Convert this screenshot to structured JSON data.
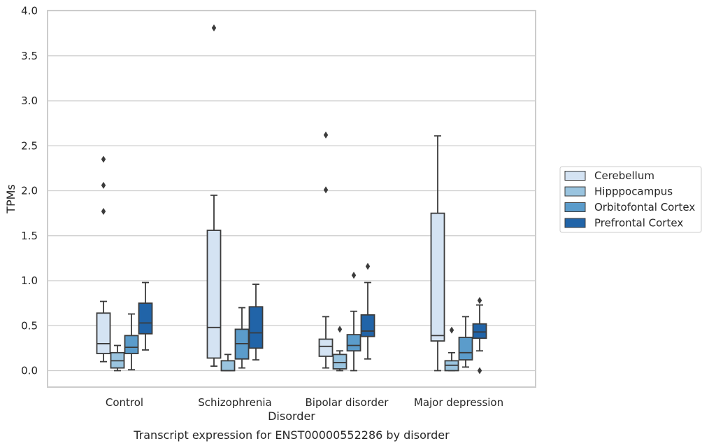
{
  "chart_data": {
    "type": "box",
    "caption": "Transcript expression for ENST00000552286 by disorder",
    "xlabel": "Disorder",
    "ylabel": "TPMs",
    "ylim": [
      -0.18,
      4.0
    ],
    "yticks": [
      "0.0",
      "0.5",
      "1.0",
      "1.5",
      "2.0",
      "2.5",
      "3.0",
      "3.5",
      "4.0"
    ],
    "ytick_values": [
      0.0,
      0.5,
      1.0,
      1.5,
      2.0,
      2.5,
      3.0,
      3.5,
      4.0
    ],
    "grid": true,
    "legend_position": "right",
    "categories": [
      "Control",
      "Schizophrenia",
      "Bipolar disorder",
      "Major depression"
    ],
    "series": [
      {
        "name": "Cerebellum",
        "color": "#d4e3f3",
        "boxes": [
          {
            "whisker_low": 0.1,
            "q1": 0.19,
            "median": 0.3,
            "q3": 0.64,
            "whisker_high": 0.77,
            "outliers": [
              1.77,
              2.06,
              2.35
            ]
          },
          {
            "whisker_low": 0.05,
            "q1": 0.14,
            "median": 0.48,
            "q3": 1.56,
            "whisker_high": 1.95,
            "outliers": [
              3.81
            ]
          },
          {
            "whisker_low": 0.03,
            "q1": 0.16,
            "median": 0.27,
            "q3": 0.35,
            "whisker_high": 0.6,
            "outliers": [
              2.01,
              2.62
            ]
          },
          {
            "whisker_low": 0.0,
            "q1": 0.33,
            "median": 0.39,
            "q3": 1.75,
            "whisker_high": 2.61,
            "outliers": []
          }
        ]
      },
      {
        "name": "Hipppocampus",
        "color": "#9ac4df",
        "boxes": [
          {
            "whisker_low": 0.0,
            "q1": 0.03,
            "median": 0.11,
            "q3": 0.2,
            "whisker_high": 0.28,
            "outliers": []
          },
          {
            "whisker_low": 0.0,
            "q1": 0.0,
            "median": 0.0,
            "q3": 0.11,
            "whisker_high": 0.18,
            "outliers": []
          },
          {
            "whisker_low": 0.0,
            "q1": 0.02,
            "median": 0.09,
            "q3": 0.18,
            "whisker_high": 0.22,
            "outliers": [
              0.46
            ]
          },
          {
            "whisker_low": 0.0,
            "q1": 0.0,
            "median": 0.06,
            "q3": 0.11,
            "whisker_high": 0.2,
            "outliers": [
              0.45
            ]
          }
        ]
      },
      {
        "name": "Orbitofontal Cortex",
        "color": "#5b9ccb",
        "boxes": [
          {
            "whisker_low": 0.01,
            "q1": 0.19,
            "median": 0.26,
            "q3": 0.39,
            "whisker_high": 0.63,
            "outliers": []
          },
          {
            "whisker_low": 0.03,
            "q1": 0.13,
            "median": 0.3,
            "q3": 0.46,
            "whisker_high": 0.7,
            "outliers": []
          },
          {
            "whisker_low": 0.0,
            "q1": 0.22,
            "median": 0.28,
            "q3": 0.4,
            "whisker_high": 0.66,
            "outliers": [
              1.06
            ]
          },
          {
            "whisker_low": 0.04,
            "q1": 0.12,
            "median": 0.2,
            "q3": 0.37,
            "whisker_high": 0.6,
            "outliers": []
          }
        ]
      },
      {
        "name": "Prefrontal Cortex",
        "color": "#2164a8",
        "boxes": [
          {
            "whisker_low": 0.23,
            "q1": 0.41,
            "median": 0.53,
            "q3": 0.75,
            "whisker_high": 0.98,
            "outliers": []
          },
          {
            "whisker_low": 0.12,
            "q1": 0.25,
            "median": 0.42,
            "q3": 0.71,
            "whisker_high": 0.96,
            "outliers": []
          },
          {
            "whisker_low": 0.13,
            "q1": 0.38,
            "median": 0.44,
            "q3": 0.62,
            "whisker_high": 0.98,
            "outliers": [
              1.16
            ]
          },
          {
            "whisker_low": 0.22,
            "q1": 0.36,
            "median": 0.43,
            "q3": 0.52,
            "whisker_high": 0.73,
            "outliers": [
              0.0,
              0.78
            ]
          }
        ]
      }
    ]
  }
}
